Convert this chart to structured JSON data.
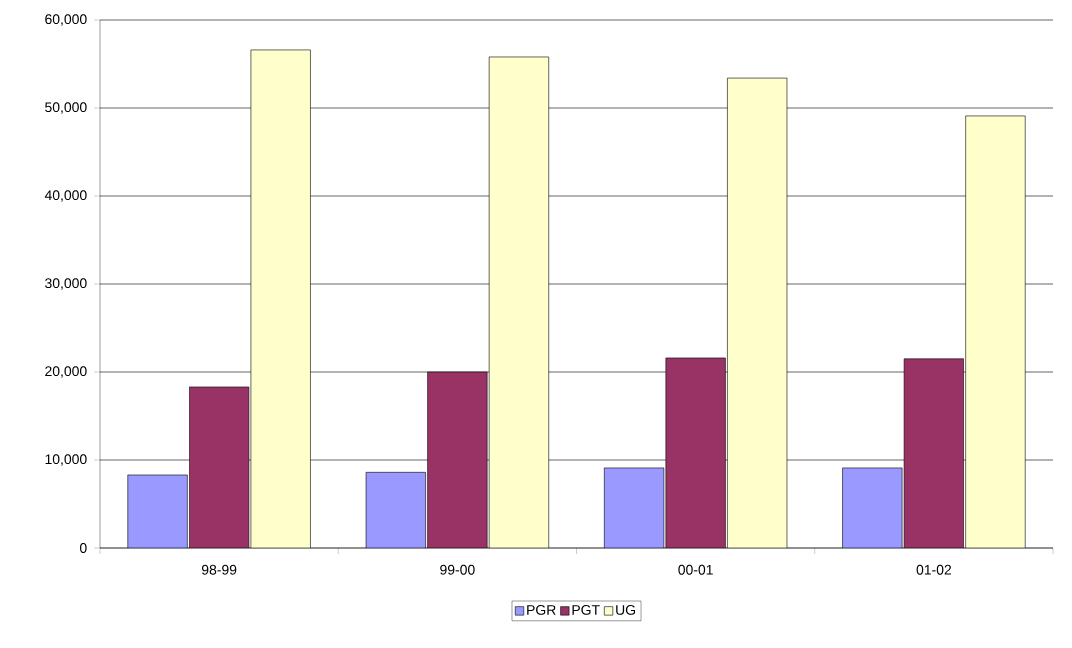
{
  "chart_data": {
    "type": "bar",
    "categories": [
      "98-99",
      "99-00",
      "00-01",
      "01-02"
    ],
    "series": [
      {
        "name": "PGR",
        "color": "#9999ff",
        "values": [
          8300,
          8600,
          9100,
          9100
        ]
      },
      {
        "name": "PGT",
        "color": "#993366",
        "values": [
          18300,
          20000,
          21600,
          21500
        ]
      },
      {
        "name": "UG",
        "color": "#ffffcc",
        "values": [
          56600,
          55800,
          53400,
          49100
        ]
      }
    ],
    "ylim": [
      0,
      60000
    ],
    "yticks": [
      {
        "value": 0,
        "label": "0"
      },
      {
        "value": 10000,
        "label": "10,000"
      },
      {
        "value": 20000,
        "label": "20,000"
      },
      {
        "value": 30000,
        "label": "30,000"
      },
      {
        "value": 40000,
        "label": "40,000"
      },
      {
        "value": 50000,
        "label": "50,000"
      },
      {
        "value": 60000,
        "label": "60,000"
      }
    ],
    "grid": "y",
    "legend": "bottom"
  }
}
